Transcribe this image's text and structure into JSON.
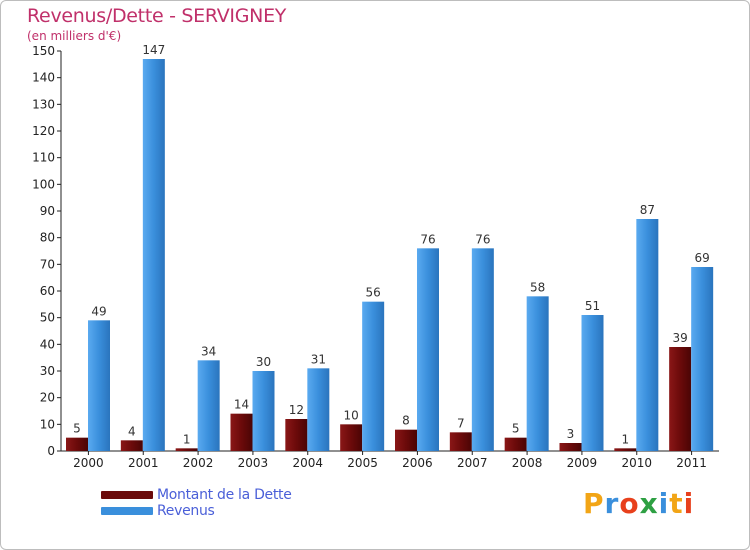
{
  "header": {
    "title": "Revenus/Dette - SERVIGNEY",
    "subtitle": "(en milliers d'€)"
  },
  "colors": {
    "dette": "#6b0a0a",
    "revenus": "#3a8fdc",
    "title": "#c0306a",
    "legend_text": "#4a5fd8"
  },
  "chart_data": {
    "type": "bar",
    "title": "Revenus/Dette - SERVIGNEY",
    "subtitle": "(en milliers d'€)",
    "categories": [
      "2000",
      "2001",
      "2002",
      "2003",
      "2004",
      "2005",
      "2006",
      "2007",
      "2008",
      "2009",
      "2010",
      "2011"
    ],
    "series": [
      {
        "name": "Montant de la Dette",
        "color": "#6b0a0a",
        "values": [
          5,
          4,
          1,
          14,
          12,
          10,
          8,
          7,
          5,
          3,
          1,
          39
        ]
      },
      {
        "name": "Revenus",
        "color": "#3a8fdc",
        "values": [
          49,
          147,
          34,
          30,
          31,
          56,
          76,
          76,
          58,
          51,
          87,
          69
        ]
      }
    ],
    "ylim": [
      0,
      150
    ],
    "yticks": [
      0,
      10,
      20,
      30,
      40,
      50,
      60,
      70,
      80,
      90,
      100,
      110,
      120,
      130,
      140,
      150
    ],
    "grid": false,
    "legend_position": "bottom-left"
  },
  "legend": [
    {
      "label": "Montant de la Dette",
      "color": "#6b0a0a"
    },
    {
      "label": "Revenus",
      "color": "#3a8fdc"
    }
  ],
  "logo": {
    "letters": [
      "P",
      "r",
      "o",
      "x",
      "i",
      "t",
      "i"
    ],
    "colors": [
      "#f2a516",
      "#3a8fdc",
      "#e8401c",
      "#2ea043",
      "#3a8fdc",
      "#f2a516",
      "#e8401c"
    ]
  }
}
